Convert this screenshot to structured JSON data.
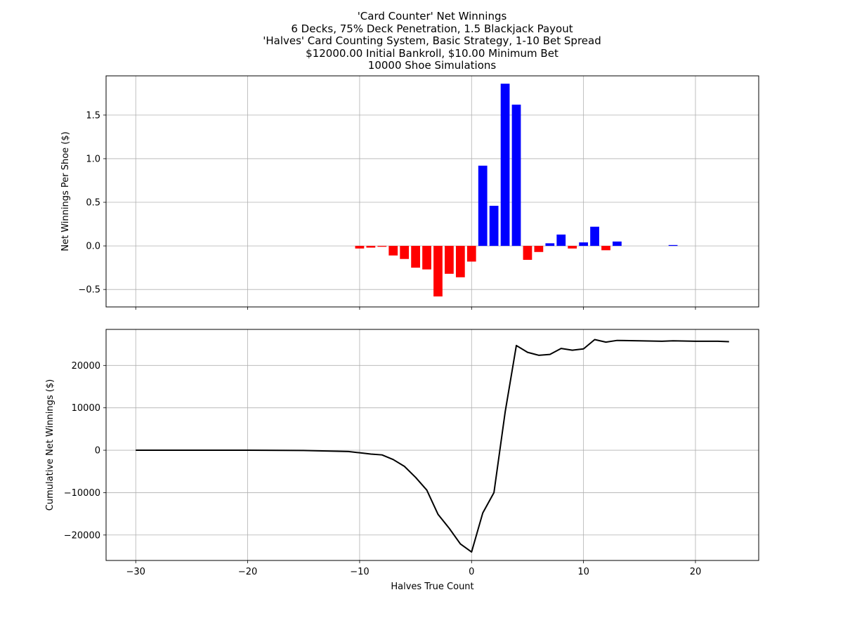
{
  "title_lines": [
    "'Card Counter' Net Winnings",
    "6 Decks, 75% Deck Penetration, 1.5 Blackjack Payout",
    "'Halves' Card Counting System, Basic Strategy, 1-10 Bet Spread",
    "$12000.00 Initial Bankroll, $10.00 Minimum Bet",
    "10000 Shoe Simulations"
  ],
  "colors": {
    "positive": "#0000ff",
    "negative": "#ff0000",
    "line": "#000000",
    "grid": "#b0b0b0"
  },
  "chart_data": [
    {
      "type": "bar",
      "ylabel": "Net Winnings Per Shoe ($)",
      "xlim": [
        -32.65,
        25.65
      ],
      "ylim": [
        -0.7,
        1.95
      ],
      "xticks": [
        -30,
        -20,
        -10,
        0,
        10,
        20
      ],
      "yticks": [
        -0.5,
        0.0,
        0.5,
        1.0,
        1.5
      ],
      "ytick_labels": [
        "−0.5",
        "0.0",
        "0.5",
        "1.0",
        "1.5"
      ],
      "grid": true,
      "x": [
        -10,
        -9,
        -8,
        -7,
        -6,
        -5,
        -4,
        -3,
        -2,
        -1,
        0,
        1,
        2,
        3,
        4,
        5,
        6,
        7,
        8,
        9,
        10,
        11,
        12,
        13,
        18
      ],
      "values": [
        -0.03,
        -0.02,
        -0.01,
        -0.11,
        -0.15,
        -0.25,
        -0.27,
        -0.58,
        -0.32,
        -0.36,
        -0.18,
        0.92,
        0.46,
        1.86,
        1.62,
        -0.16,
        -0.07,
        0.03,
        0.13,
        -0.03,
        0.04,
        0.22,
        -0.05,
        0.05,
        0.01
      ]
    },
    {
      "type": "line",
      "ylabel": "Cumulative Net Winnings ($)",
      "xlabel": "Halves True Count",
      "xlim": [
        -32.65,
        25.65
      ],
      "ylim": [
        -26000,
        28500
      ],
      "xticks": [
        -30,
        -20,
        -10,
        0,
        10,
        20
      ],
      "xtick_labels": [
        "−30",
        "−20",
        "−10",
        "0",
        "10",
        "20"
      ],
      "yticks": [
        -20000,
        -10000,
        0,
        10000,
        20000
      ],
      "ytick_labels": [
        "−20000",
        "−10000",
        "0",
        "10000",
        "20000"
      ],
      "grid": true,
      "x": [
        -30,
        -20,
        -15,
        -12,
        -11,
        -10,
        -9,
        -8,
        -7,
        -6,
        -5,
        -4,
        -3,
        -2,
        -1,
        0,
        1,
        2,
        3,
        4,
        5,
        6,
        7,
        8,
        9,
        10,
        11,
        12,
        13,
        15,
        17,
        18,
        20,
        22,
        23
      ],
      "y": [
        0,
        0,
        -50,
        -250,
        -300,
        -600,
        -900,
        -1100,
        -2200,
        -3800,
        -6400,
        -9400,
        -15100,
        -18400,
        -22100,
        -24000,
        -14800,
        -10000,
        9000,
        24700,
        23100,
        22400,
        22600,
        24000,
        23600,
        23900,
        26100,
        25500,
        25900,
        25800,
        25700,
        25800,
        25700,
        25700,
        25600
      ]
    }
  ]
}
